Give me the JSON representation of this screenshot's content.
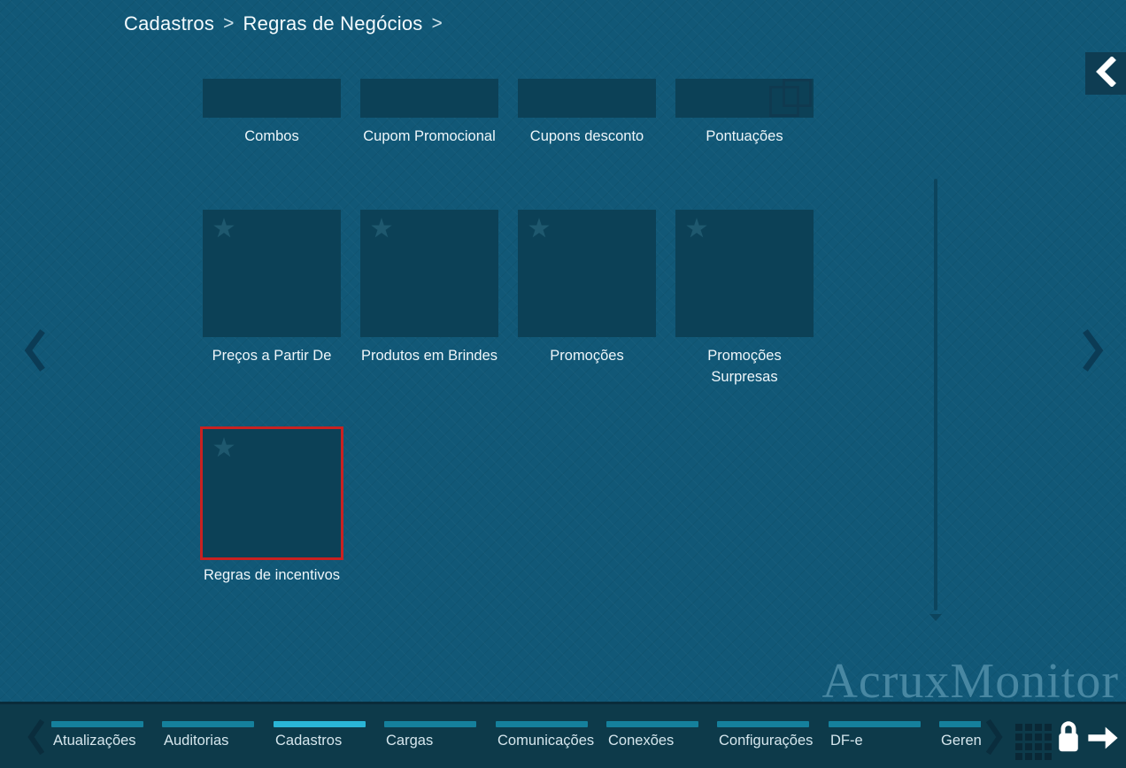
{
  "breadcrumb": {
    "items": [
      "Cadastros",
      "Regras de Negócios"
    ],
    "separator": ">"
  },
  "watermark": "AcruxMonitor",
  "grid": {
    "tiles": [
      {
        "label": "Combos",
        "row": 0,
        "col": 0,
        "partial": true
      },
      {
        "label": "Cupom Promocional",
        "row": 0,
        "col": 1,
        "partial": true
      },
      {
        "label": "Cupons desconto",
        "row": 0,
        "col": 2,
        "partial": true
      },
      {
        "label": "Pontuações",
        "row": 0,
        "col": 3,
        "partial": true,
        "icon": "overlapping-squares"
      },
      {
        "label": "Preços a Partir De",
        "row": 1,
        "col": 0,
        "star": true
      },
      {
        "label": "Produtos em Brindes",
        "row": 1,
        "col": 1,
        "star": true
      },
      {
        "label": "Promoções",
        "row": 1,
        "col": 2,
        "star": true
      },
      {
        "label": "Promoções Surpresas",
        "row": 1,
        "col": 3,
        "star": true
      },
      {
        "label": "Regras de incentivos",
        "row": 2,
        "col": 0,
        "star": true,
        "selected": true
      }
    ]
  },
  "bottom_nav": {
    "tabs": [
      {
        "label": "Atualizações",
        "active": false
      },
      {
        "label": "Auditorias",
        "active": false
      },
      {
        "label": "Cadastros",
        "active": true
      },
      {
        "label": "Cargas",
        "active": false
      },
      {
        "label": "Comunicações",
        "active": false
      },
      {
        "label": "Conexões",
        "active": false
      },
      {
        "label": "Configurações",
        "active": false
      },
      {
        "label": "DF-e",
        "active": false
      },
      {
        "label": "Geren",
        "active": false,
        "clipped": true
      }
    ]
  },
  "colors": {
    "background": "#115877",
    "tile": "#0c4157",
    "bottom_bar": "#0d3a4a",
    "tab_indicator_inactive": "#15809c",
    "tab_indicator_active": "#2ab5d6",
    "selected_tile_border": "#c92121",
    "watermark": "#4d8ca6"
  }
}
